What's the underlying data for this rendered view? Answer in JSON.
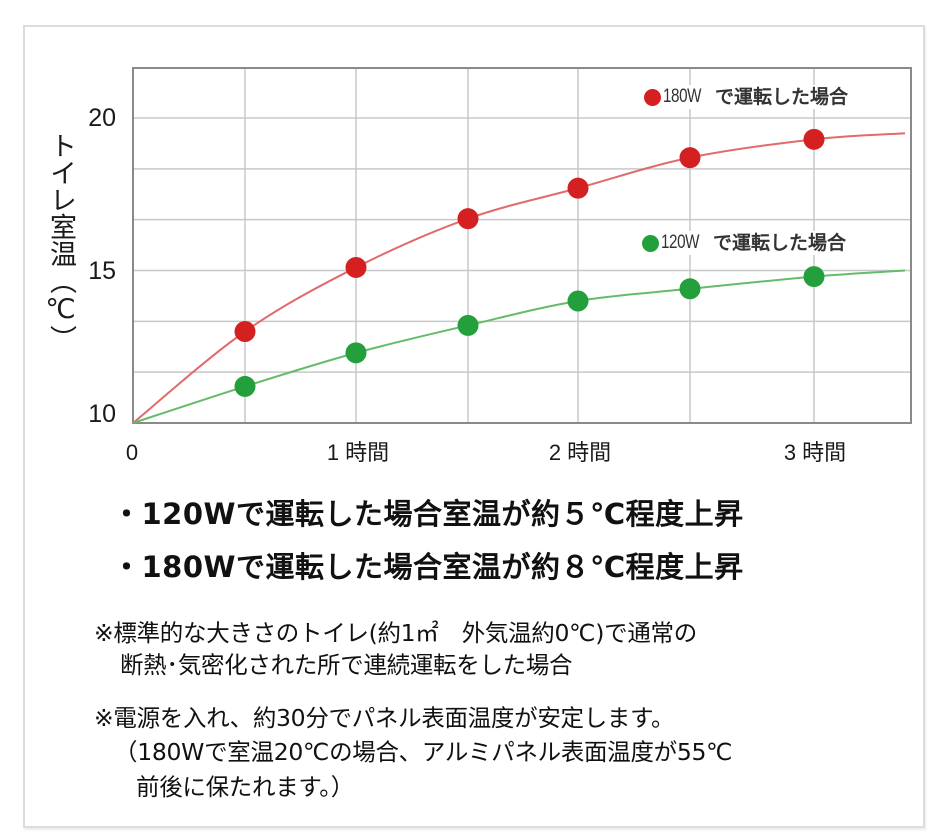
{
  "chart_data": {
    "type": "line",
    "title": "",
    "xlabel": "",
    "ylabel": "トイレ室温（℃）",
    "x_ticks": [
      {
        "value": 0,
        "label_num": "0",
        "label_unit": ""
      },
      {
        "value": 1,
        "label_num": "1",
        "label_unit": "時間"
      },
      {
        "value": 2,
        "label_num": "2",
        "label_unit": "時間"
      },
      {
        "value": 3,
        "label_num": "3",
        "label_unit": "時間"
      }
    ],
    "y_ticks": [
      {
        "value": 20,
        "label": "20"
      },
      {
        "value": 15,
        "label": "15"
      },
      {
        "value": 10,
        "label": "10"
      }
    ],
    "xlim": [
      0,
      3.4
    ],
    "ylim": [
      10,
      21.6
    ],
    "x_unit": "時間",
    "grid": true,
    "grid_x_step_hours": 0.5,
    "grid_y_step": 1.667,
    "legend_position": "inside-right",
    "series": [
      {
        "name": "180W で運転した場合",
        "legend_num": "180W",
        "legend_text": "で運転した場合",
        "color": "#d42020",
        "line_color": "#e26a6a",
        "x": [
          0,
          0.5,
          1.0,
          1.5,
          2.0,
          2.5,
          3.0
        ],
        "values": [
          10.0,
          13.0,
          15.1,
          16.7,
          17.7,
          18.7,
          19.3
        ],
        "curve_end": {
          "x": 3.4,
          "y": 19.5
        }
      },
      {
        "name": "120W で運転した場合",
        "legend_num": "120W",
        "legend_text": "で運転した場合",
        "color": "#23a03b",
        "line_color": "#66bb6a",
        "x": [
          0,
          0.5,
          1.0,
          1.5,
          2.0,
          2.5,
          3.0
        ],
        "values": [
          10.0,
          11.2,
          12.3,
          13.2,
          14.0,
          14.4,
          14.8
        ],
        "curve_end": {
          "x": 3.4,
          "y": 15.0
        }
      }
    ]
  },
  "summary": {
    "lines": [
      "・120Wで運転した場合室温が約５℃程度上昇",
      "・180Wで運転した場合室温が約８℃程度上昇"
    ]
  },
  "notes": {
    "note1_line1": "※標準的な大きさのトイレ(約1㎡　外気温約0℃)で通常の",
    "note1_line2": "断熱･気密化された所で連続運転をした場合",
    "note2_line1": "※電源を入れ、約30分でパネル表面温度が安定します。",
    "note2_line2": "（180Wで室温20℃の場合、アルミパネル表面温度が55℃",
    "note2_line3": "前後に保たれます。）"
  }
}
